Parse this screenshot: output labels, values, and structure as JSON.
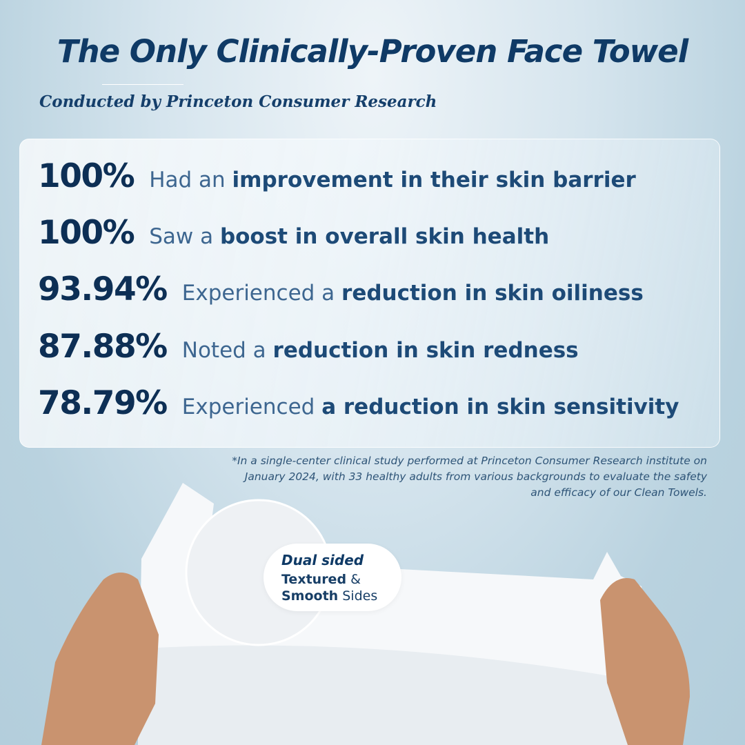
{
  "header": {
    "title": "The Only Clinically-Proven Face Towel",
    "subtitle": "Conducted by Princeton Consumer Research"
  },
  "stats": [
    {
      "value": "100%",
      "pre": "Had an ",
      "bold": "improvement in their skin barrier"
    },
    {
      "value": "100%",
      "pre": "Saw a ",
      "bold": "boost in overall skin health"
    },
    {
      "value": "93.94%",
      "pre": "Experienced a ",
      "bold": "reduction in skin oiliness"
    },
    {
      "value": "87.88%",
      "pre": "Noted a ",
      "bold": "reduction in skin redness"
    },
    {
      "value": "78.79%",
      "pre": "Experienced ",
      "bold": "a reduction in skin sensitivity"
    }
  ],
  "footnote": "*In a single-center clinical study performed at Princeton Consumer Research institute on January 2024, with 33 healthy adults from various backgrounds to evaluate the safety and efficacy of our Clean Towels.",
  "badge": {
    "title": "Dual sided",
    "textured": "Textured",
    "amp": " &",
    "smooth": "Smooth",
    "sides": " Sides"
  },
  "colors": {
    "title": "#0f3a66",
    "number": "#0d2f55",
    "text": "#3d6690",
    "background": "#b9d2df"
  }
}
